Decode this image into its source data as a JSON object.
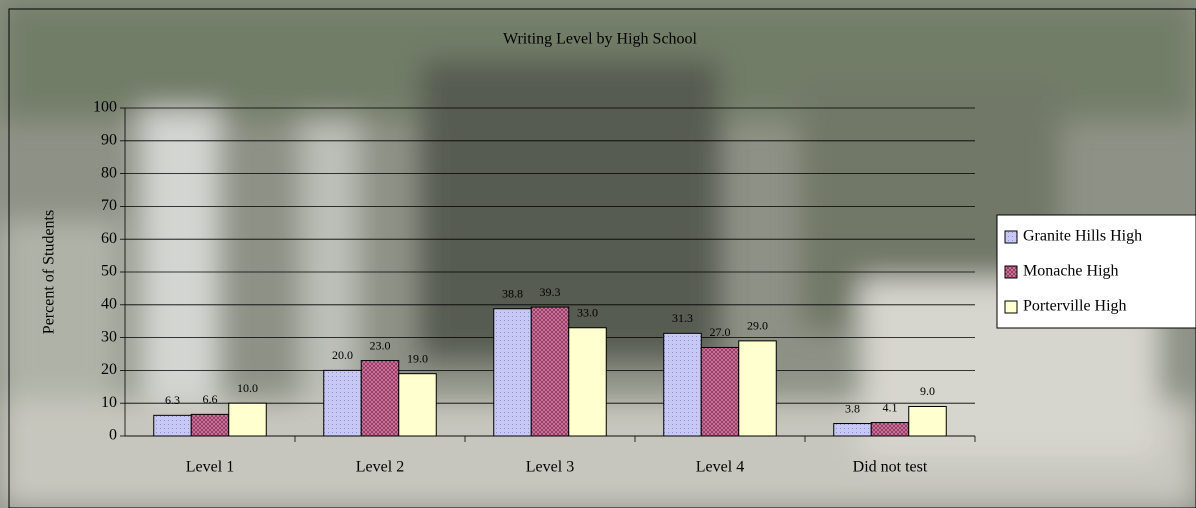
{
  "chart_data": {
    "type": "bar",
    "title": "Writing Level by High School",
    "y_label": "Percent of Students",
    "categories": [
      "Level 1",
      "Level 2",
      "Level 3",
      "Level 4",
      "Did not test"
    ],
    "series": [
      {
        "name": "Granite Hills High",
        "color": "#c8c8f4",
        "values": [
          6.3,
          20.0,
          38.8,
          31.3,
          3.8
        ],
        "value_labels": [
          "6.3",
          "20.0",
          "38.8",
          "31.3",
          "3.8"
        ]
      },
      {
        "name": "Monache High",
        "color": "#d080a0",
        "values": [
          6.6,
          23.0,
          39.3,
          27.0,
          4.1
        ],
        "value_labels": [
          "6.6",
          "23.0",
          "39.3",
          "27.0",
          "4.1"
        ]
      },
      {
        "name": "Porterville High",
        "color": "#ffffd0",
        "values": [
          10.0,
          19.0,
          33.0,
          29.0,
          9.0
        ],
        "value_labels": [
          "10.0",
          "19.0",
          "33.0",
          "29.0",
          "9.0"
        ]
      }
    ],
    "ylim": [
      0,
      100
    ],
    "yticks": [
      0,
      10,
      20,
      30,
      40,
      50,
      60,
      70,
      80,
      90,
      100
    ],
    "grid": true,
    "legend": "right"
  }
}
